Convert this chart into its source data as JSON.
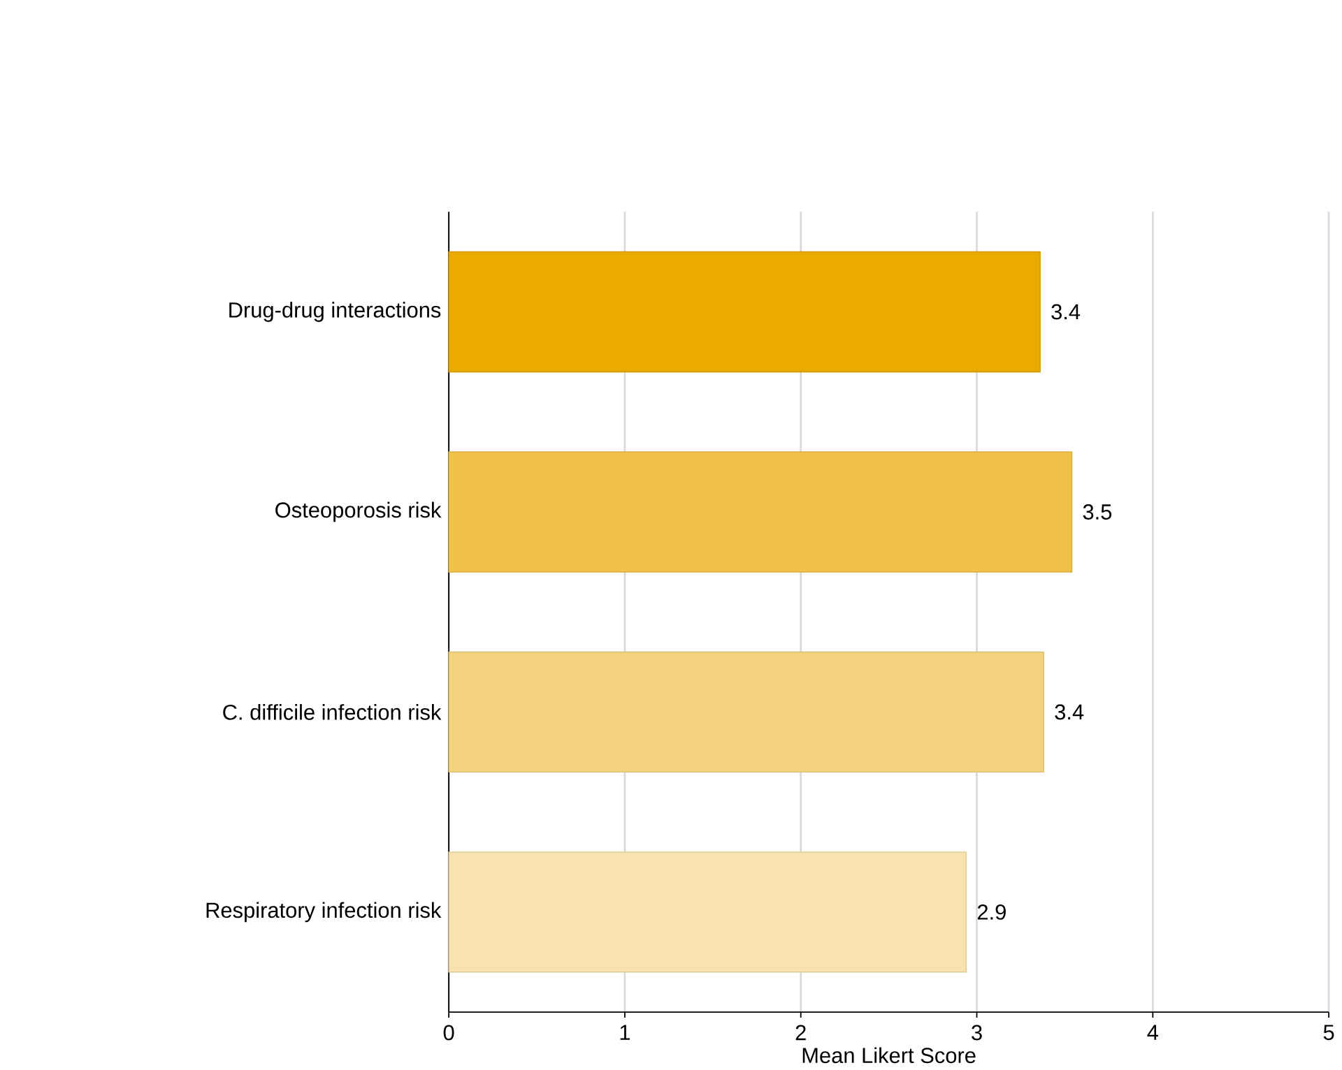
{
  "chart_data": {
    "type": "bar",
    "orientation": "horizontal",
    "xlabel": "Mean Likert Score",
    "categories": [
      "Drug-drug interactions",
      "Osteoporosis risk",
      "C. difficile infection risk",
      "Respiratory infection risk"
    ],
    "values": [
      3.36,
      3.54,
      3.38,
      2.94
    ],
    "value_labels": [
      "3.4",
      "3.5",
      "3.4",
      "2.9"
    ],
    "colors": [
      "#eaaa00",
      "#f0c24a",
      "#f3d37f",
      "#f8e3ae"
    ],
    "xlim": [
      0,
      5
    ],
    "xticks": [
      0,
      1,
      2,
      3,
      4,
      5
    ],
    "grid": "x"
  }
}
